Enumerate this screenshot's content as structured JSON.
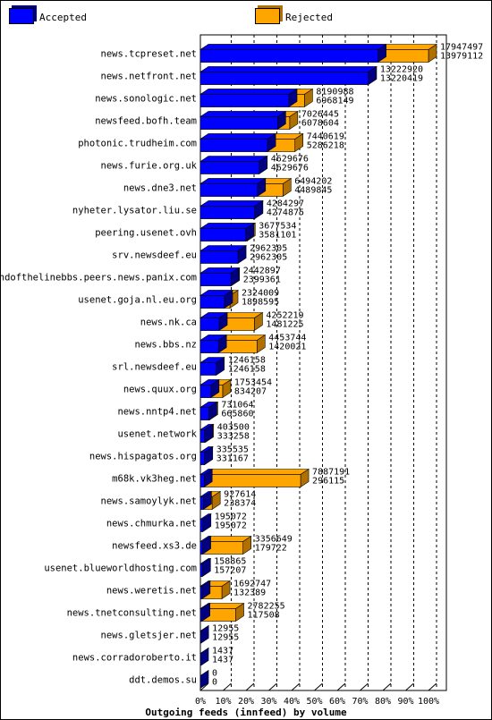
{
  "legend": {
    "accepted": "Accepted",
    "rejected": "Rejected"
  },
  "colors": {
    "accepted": "#0000ff",
    "rejected": "#ffa500",
    "accepted_dark": "#000080",
    "rejected_dark": "#b07000"
  },
  "chart_data": {
    "type": "bar",
    "orientation": "horizontal",
    "stacked": false,
    "xlabel": "Outgoing feeds (innfeed) by volume",
    "xlim": [
      0,
      100
    ],
    "xticks": [
      "0%",
      "10%",
      "20%",
      "30%",
      "40%",
      "50%",
      "60%",
      "70%",
      "80%",
      "90%",
      "100%"
    ],
    "grid": true,
    "legend_position": "top",
    "categories": [
      "news.tcpreset.net",
      "news.netfront.net",
      "news.sonologic.net",
      "newsfeed.bofh.team",
      "photonic.trudheim.com",
      "news.furie.org.uk",
      "news.dne3.net",
      "nyheter.lysator.liu.se",
      "peering.usenet.ovh",
      "srv.newsdeef.eu",
      "endofthelinebbs.peers.news.panix.com",
      "usenet.goja.nl.eu.org",
      "news.nk.ca",
      "news.bbs.nz",
      "srl.newsdeef.eu",
      "news.quux.org",
      "news.nntp4.net",
      "usenet.network",
      "news.hispagatos.org",
      "m68k.vk3heg.net",
      "news.samoylyk.net",
      "news.chmurka.net",
      "newsfeed.xs3.de",
      "usenet.blueworldhosting.com",
      "news.weretis.net",
      "news.tnetconsulting.net",
      "news.gletsjer.net",
      "news.corradoroberto.it",
      "ddt.demos.su"
    ],
    "series": [
      {
        "name": "Accepted",
        "values": [
          13979112,
          13220419,
          6968149,
          6078604,
          5286218,
          4629676,
          4489845,
          4274875,
          3581101,
          2962305,
          2399361,
          1898595,
          1481225,
          1420021,
          1246158,
          834207,
          665860,
          333258,
          331167,
          296115,
          238374,
          195072,
          179722,
          157207,
          132389,
          117508,
          12955,
          1437,
          0
        ]
      },
      {
        "name": "Rejected",
        "values": [
          17947497,
          13222920,
          8190988,
          7026445,
          7440619,
          4629676,
          6494202,
          4284297,
          3677534,
          2962305,
          2442897,
          2324009,
          4252219,
          4453744,
          1246158,
          1753454,
          731064,
          403500,
          335535,
          7887191,
          927614,
          195072,
          3356649,
          158865,
          1692747,
          2782255,
          12955,
          1437,
          0
        ]
      }
    ]
  }
}
